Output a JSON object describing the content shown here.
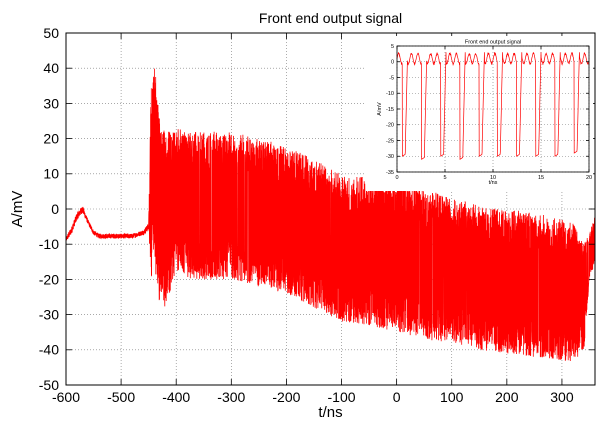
{
  "chart_data": [
    {
      "type": "line",
      "title": "Front end output signal",
      "xlabel": "t/ns",
      "ylabel": "A/mV",
      "xlim": [
        -600,
        360
      ],
      "ylim": [
        -50,
        50
      ],
      "xticks": [
        -600,
        -500,
        -400,
        -300,
        -200,
        -100,
        0,
        100,
        200,
        300
      ],
      "yticks": [
        -50,
        -40,
        -30,
        -20,
        -10,
        0,
        10,
        20,
        30,
        40,
        50
      ],
      "grid": true,
      "series_color": "#ff0000",
      "series": [
        {
          "x": [
            -600,
            -590,
            -580,
            -570,
            -560,
            -550,
            -540,
            -520,
            -500,
            -480,
            -460,
            -450,
            -445,
            -440,
            -436,
            -430,
            -420,
            -400,
            -380,
            -350,
            -300,
            -250,
            -200,
            -150,
            -100,
            -50,
            0,
            50,
            100,
            150,
            200,
            250,
            300,
            320,
            340,
            350,
            360
          ],
          "upper": [
            -8,
            -5,
            -1,
            1,
            -3,
            -6,
            -7,
            -7,
            -7,
            -7,
            -6,
            -4,
            40,
            44,
            35,
            25,
            22,
            23,
            22,
            22,
            22,
            20,
            18,
            14,
            10,
            9,
            8,
            6,
            3,
            1,
            0,
            -1,
            -3,
            -4,
            -10,
            -7,
            -1
          ],
          "lower": [
            -10,
            -8,
            -4,
            -2,
            -5,
            -8,
            -9,
            -9,
            -9,
            -9,
            -8,
            -7,
            -20,
            -10,
            -22,
            -27,
            -28,
            -18,
            -20,
            -20,
            -20,
            -22,
            -24,
            -28,
            -32,
            -33,
            -35,
            -37,
            -38,
            -40,
            -41,
            -42,
            -43,
            -44,
            -40,
            -20,
            -15
          ]
        }
      ]
    },
    {
      "type": "line",
      "title": "Front end output signal",
      "xlabel": "t/ns",
      "ylabel": "A/mV",
      "xlim": [
        0,
        20
      ],
      "ylim": [
        -35,
        5
      ],
      "xticks": [
        0,
        5,
        10,
        15,
        20
      ],
      "yticks": [
        -35,
        -30,
        -25,
        -20,
        -15,
        -10,
        -5,
        0,
        5
      ],
      "grid": true,
      "series_color": "#ff0000",
      "pulse_times": [
        0.6,
        2.6,
        4.6,
        6.6,
        8.6,
        10.5,
        12.5,
        14.5,
        16.5,
        18.5
      ],
      "pulse_depths": [
        -30,
        -31,
        -30,
        -31,
        -30,
        -30,
        -30,
        -30,
        -30,
        -29
      ],
      "baseline": [
        -1,
        3
      ]
    }
  ]
}
